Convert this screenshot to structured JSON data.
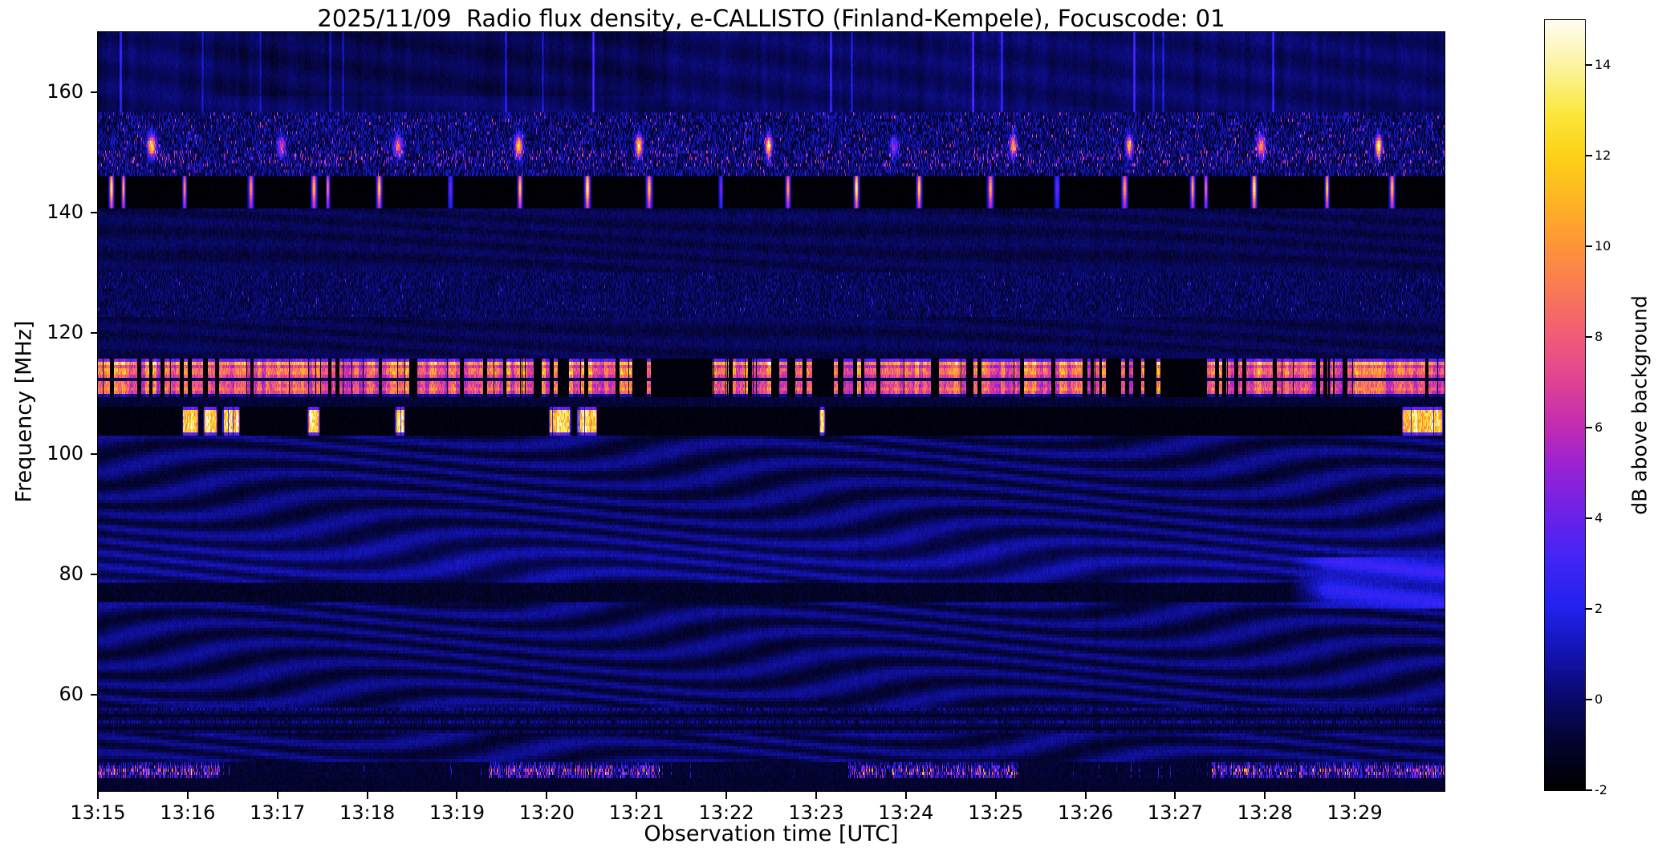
{
  "chart_data": {
    "type": "heatmap",
    "title": "2025/11/09  Radio flux density, e-CALLISTO (Finland-Kempele), Focuscode: 01",
    "xlabel": "Observation time [UTC]",
    "ylabel": "Frequency [MHz]",
    "x_ticks": [
      "13:15",
      "13:16",
      "13:17",
      "13:18",
      "13:19",
      "13:20",
      "13:21",
      "13:22",
      "13:23",
      "13:24",
      "13:25",
      "13:26",
      "13:27",
      "13:28",
      "13:29"
    ],
    "x_minutes_span": 15,
    "y_ticks": [
      60,
      80,
      100,
      120,
      140,
      160
    ],
    "freq_range": [
      44,
      170
    ],
    "value_range": [
      -2,
      15
    ],
    "grid": false,
    "legend": "none",
    "colorbar": {
      "label": "dB above background",
      "ticks": [
        -2,
        0,
        2,
        4,
        6,
        8,
        10,
        12,
        14
      ]
    },
    "colormap_stops": [
      [
        0.0,
        "#000000"
      ],
      [
        0.06,
        "#04042e"
      ],
      [
        0.12,
        "#0a0a6e"
      ],
      [
        0.18,
        "#1414b4"
      ],
      [
        0.235,
        "#2222ee"
      ],
      [
        0.3,
        "#4325f8"
      ],
      [
        0.36,
        "#6e22e8"
      ],
      [
        0.42,
        "#9922d4"
      ],
      [
        0.47,
        "#c22bb4"
      ],
      [
        0.53,
        "#e04394"
      ],
      [
        0.59,
        "#f25c78"
      ],
      [
        0.65,
        "#fa7a55"
      ],
      [
        0.71,
        "#fe9638"
      ],
      [
        0.765,
        "#feb424"
      ],
      [
        0.825,
        "#fdd118"
      ],
      [
        0.88,
        "#fbe83c"
      ],
      [
        0.94,
        "#fdf49c"
      ],
      [
        1.0,
        "#fffdf0"
      ]
    ],
    "features": {
      "top_streaks": {
        "freq": [
          157,
          170
        ],
        "dim_rect_t": [
          1.3,
          6.2
        ]
      },
      "speckle_150": {
        "freq": [
          146.5,
          157
        ],
        "dense_line_freq": 149,
        "blob_freq": 151.2,
        "blob_period_s": 82,
        "blob_phase_s": 36
      },
      "pager_143": {
        "freq": [
          141,
          146.5
        ],
        "burst_period_s": 45,
        "burst_phase_s": 10,
        "center_freq": 144.2
      },
      "air_127": {
        "freq": [
          123,
          130
        ]
      },
      "fm_113": {
        "freq": [
          109.5,
          116
        ],
        "segment_s": 2.6,
        "mid_gap_freq": 112.4,
        "quiet_windows_min": [
          [
            5.95,
            6.75
          ],
          [
            7.95,
            8.3
          ],
          [
            11.15,
            12.35
          ]
        ]
      },
      "fm_105": {
        "freq": [
          103,
          107.8
        ],
        "bursts_min": [
          [
            0.93,
            1.12
          ],
          [
            1.17,
            1.33
          ],
          [
            1.38,
            1.58
          ],
          [
            2.33,
            2.47
          ],
          [
            3.3,
            3.42
          ],
          [
            5.02,
            5.27
          ],
          [
            5.33,
            5.56
          ],
          [
            8.03,
            8.1
          ],
          [
            14.52,
            14.98
          ]
        ]
      },
      "ripple_region": {
        "freq": [
          48.3,
          103
        ],
        "bright_bump_freq": 81.5
      },
      "dark_77": {
        "freq": [
          75.5,
          78.2
        ]
      },
      "blue_patch": {
        "freq": [
          74,
          82.5
        ],
        "t_start_min": 13.25
      },
      "speckle_56": {
        "freq": [
          53.5,
          57.5
        ]
      },
      "rfi_47": {
        "freq": [
          45.8,
          48.2
        ],
        "center_freq": 47.0,
        "segments_min": [
          [
            0,
            1.35
          ],
          [
            4.35,
            6.25
          ],
          [
            8.35,
            10.25
          ],
          [
            12.4,
            15
          ]
        ]
      }
    }
  }
}
